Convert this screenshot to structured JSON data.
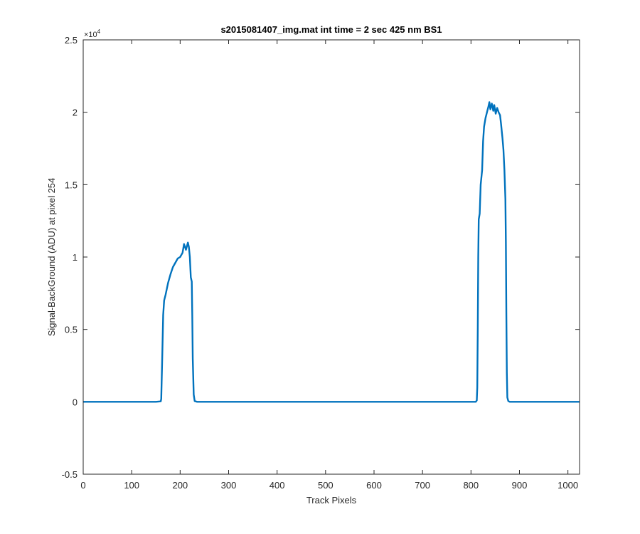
{
  "chart_data": {
    "type": "line",
    "title": "s2015081407_img.mat int time = 2 sec  425 nm BS1",
    "xlabel": "Track Pixels",
    "ylabel": "Signal-BackGround (ADU) at pixel 254",
    "y_multiplier": "×10",
    "y_exponent": "4",
    "xlim": [
      0,
      1024
    ],
    "ylim": [
      -0.5,
      2.5
    ],
    "x_ticks": [
      0,
      100,
      200,
      300,
      400,
      500,
      600,
      700,
      800,
      900,
      1000
    ],
    "x_tick_labels": [
      "0",
      "100",
      "200",
      "300",
      "400",
      "500",
      "600",
      "700",
      "800",
      "900",
      "1000"
    ],
    "y_ticks": [
      -0.5,
      0,
      0.5,
      1,
      1.5,
      2,
      2.5
    ],
    "y_tick_labels": [
      "-0.5",
      "0",
      "0.5",
      "1",
      "1.5",
      "2",
      "2.5"
    ],
    "grid": false,
    "colors": {
      "line": "#0072BD",
      "axes": "#262626"
    },
    "series": [
      {
        "points": [
          [
            0,
            0
          ],
          [
            150,
            0
          ],
          [
            160,
            0.003
          ],
          [
            161,
            0.02
          ],
          [
            163,
            0.3
          ],
          [
            165,
            0.6
          ],
          [
            167,
            0.7
          ],
          [
            170,
            0.74
          ],
          [
            175,
            0.82
          ],
          [
            180,
            0.88
          ],
          [
            185,
            0.93
          ],
          [
            190,
            0.96
          ],
          [
            195,
            0.99
          ],
          [
            200,
            1.0
          ],
          [
            205,
            1.03
          ],
          [
            208,
            1.09
          ],
          [
            212,
            1.05
          ],
          [
            216,
            1.1
          ],
          [
            218,
            1.07
          ],
          [
            220,
            1.0
          ],
          [
            222,
            0.86
          ],
          [
            224,
            0.83
          ],
          [
            225,
            0.6
          ],
          [
            226,
            0.3
          ],
          [
            228,
            0.05
          ],
          [
            230,
            0.005
          ],
          [
            235,
            0
          ],
          [
            500,
            0
          ],
          [
            800,
            0
          ],
          [
            810,
            0
          ],
          [
            812,
            0.01
          ],
          [
            813,
            0.1
          ],
          [
            814,
            0.5
          ],
          [
            815,
            1.0
          ],
          [
            816,
            1.26
          ],
          [
            818,
            1.3
          ],
          [
            820,
            1.5
          ],
          [
            823,
            1.6
          ],
          [
            825,
            1.8
          ],
          [
            827,
            1.9
          ],
          [
            830,
            1.96
          ],
          [
            833,
            2.0
          ],
          [
            836,
            2.04
          ],
          [
            838,
            2.07
          ],
          [
            840,
            2.02
          ],
          [
            843,
            2.06
          ],
          [
            846,
            2.01
          ],
          [
            848,
            2.05
          ],
          [
            851,
            1.99
          ],
          [
            854,
            2.03
          ],
          [
            857,
            2.0
          ],
          [
            860,
            1.98
          ],
          [
            862,
            1.92
          ],
          [
            865,
            1.82
          ],
          [
            867,
            1.74
          ],
          [
            869,
            1.6
          ],
          [
            871,
            1.4
          ],
          [
            872,
            1.1
          ],
          [
            873,
            0.6
          ],
          [
            874,
            0.2
          ],
          [
            875,
            0.03
          ],
          [
            877,
            0.005
          ],
          [
            880,
            0
          ],
          [
            950,
            0
          ],
          [
            1024,
            0
          ]
        ]
      }
    ]
  }
}
